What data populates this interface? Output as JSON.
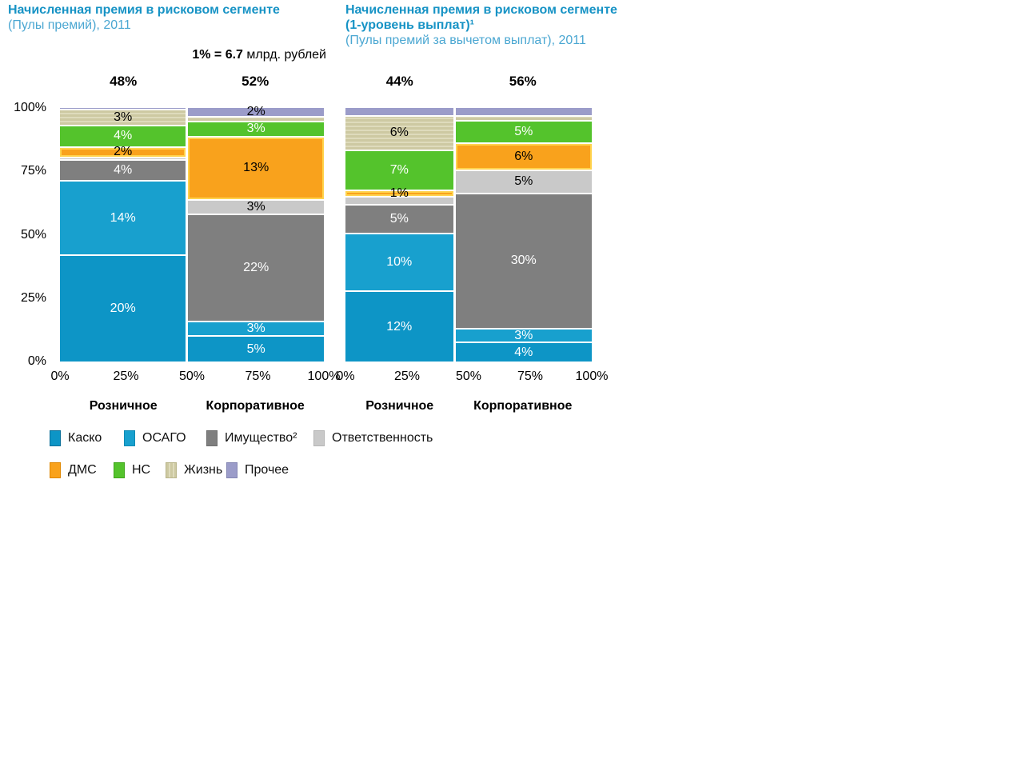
{
  "scale_note": {
    "bold": "1% = 6.7",
    "rest": " млрд. рублей"
  },
  "colors": {
    "title": "#1793c5",
    "subtitle": "#4ba7d2",
    "segment_divider": "#ffffff",
    "dms_highlight_border": "#ffd34d",
    "categories": {
      "Каско": "#0d95c6",
      "ОСАГО": "#18a0ce",
      "Имущество": "#7f7f7f",
      "Ответственность": "#c9c9c9",
      "ДМС": "#f9a21c",
      "НС": "#54c32c",
      "Жизнь": "#cdc9a2",
      "Прочее": "#9b9cc9"
    }
  },
  "legend": {
    "rows": [
      [
        "Каско",
        "ОСАГО",
        "Имущество²",
        "Ответственность"
      ],
      [
        "ДМС",
        "НС",
        "Жизнь",
        "Прочее"
      ]
    ]
  },
  "chart_data": [
    {
      "type": "marimekko-stacked-bar",
      "title": "Начисленная премия в рисковом сегменте",
      "subtitle": "(Пулы премий), 2011",
      "ylim": [
        0,
        100
      ],
      "y_ticks": [
        "100%",
        "75%",
        "50%",
        "25%",
        "0%"
      ],
      "x_ticks": [
        "0%",
        "25%",
        "50%",
        "75%",
        "100%"
      ],
      "columns": [
        {
          "label": "Розничное",
          "header": "48%",
          "width_pct": 48,
          "segments": [
            {
              "cat": "Прочее",
              "value": 0.5,
              "label": ""
            },
            {
              "cat": "Жизнь",
              "value": 3,
              "label": "3%"
            },
            {
              "cat": "НС",
              "value": 4,
              "label": "4%"
            },
            {
              "cat": "ДМС",
              "value": 2,
              "label": "2%"
            },
            {
              "cat": "Ответственность",
              "value": 0.5,
              "label": ""
            },
            {
              "cat": "Имущество",
              "value": 4,
              "label": "4%"
            },
            {
              "cat": "ОСАГО",
              "value": 14,
              "label": "14%"
            },
            {
              "cat": "Каско",
              "value": 20,
              "label": "20%"
            }
          ]
        },
        {
          "label": "Корпоративное",
          "header": "52%",
          "width_pct": 52,
          "segments": [
            {
              "cat": "Прочее",
              "value": 2,
              "label": "2%"
            },
            {
              "cat": "Жизнь",
              "value": 1,
              "label": ""
            },
            {
              "cat": "НС",
              "value": 3,
              "label": "3%"
            },
            {
              "cat": "ДМС",
              "value": 13,
              "label": "13%"
            },
            {
              "cat": "Ответственность",
              "value": 3,
              "label": "3%"
            },
            {
              "cat": "Имущество",
              "value": 22,
              "label": "22%"
            },
            {
              "cat": "ОСАГО",
              "value": 3,
              "label": "3%"
            },
            {
              "cat": "Каско",
              "value": 5,
              "label": "5%"
            }
          ]
        }
      ]
    },
    {
      "type": "marimekko-stacked-bar",
      "title": "Начисленная премия в рисковом сегменте",
      "title_line2": "(1-уровень выплат)¹",
      "subtitle": "(Пулы премий за вычетом выплат), 2011",
      "ylim": [
        0,
        100
      ],
      "x_ticks": [
        "0%",
        "25%",
        "50%",
        "75%",
        "100%"
      ],
      "columns": [
        {
          "label": "Розничное",
          "header": "44%",
          "width_pct": 44,
          "segments": [
            {
              "cat": "Прочее",
              "value": 1.5,
              "label": ""
            },
            {
              "cat": "Жизнь",
              "value": 6,
              "label": "6%"
            },
            {
              "cat": "НС",
              "value": 7,
              "label": "7%"
            },
            {
              "cat": "ДМС",
              "value": 1,
              "label": "1%"
            },
            {
              "cat": "Ответственность",
              "value": 1.5,
              "label": ""
            },
            {
              "cat": "Имущество",
              "value": 5,
              "label": "5%"
            },
            {
              "cat": "ОСАГО",
              "value": 10,
              "label": "10%"
            },
            {
              "cat": "Каско",
              "value": 12,
              "label": "12%"
            }
          ]
        },
        {
          "label": "Корпоративное",
          "header": "56%",
          "width_pct": 56,
          "segments": [
            {
              "cat": "Прочее",
              "value": 2,
              "label": ""
            },
            {
              "cat": "Жизнь",
              "value": 1,
              "label": ""
            },
            {
              "cat": "НС",
              "value": 5,
              "label": "5%"
            },
            {
              "cat": "ДМС",
              "value": 6,
              "label": "6%"
            },
            {
              "cat": "Ответственность",
              "value": 5,
              "label": "5%"
            },
            {
              "cat": "Имущество",
              "value": 30,
              "label": "30%"
            },
            {
              "cat": "ОСАГО",
              "value": 3,
              "label": "3%"
            },
            {
              "cat": "Каско",
              "value": 4,
              "label": "4%"
            }
          ]
        }
      ]
    }
  ]
}
